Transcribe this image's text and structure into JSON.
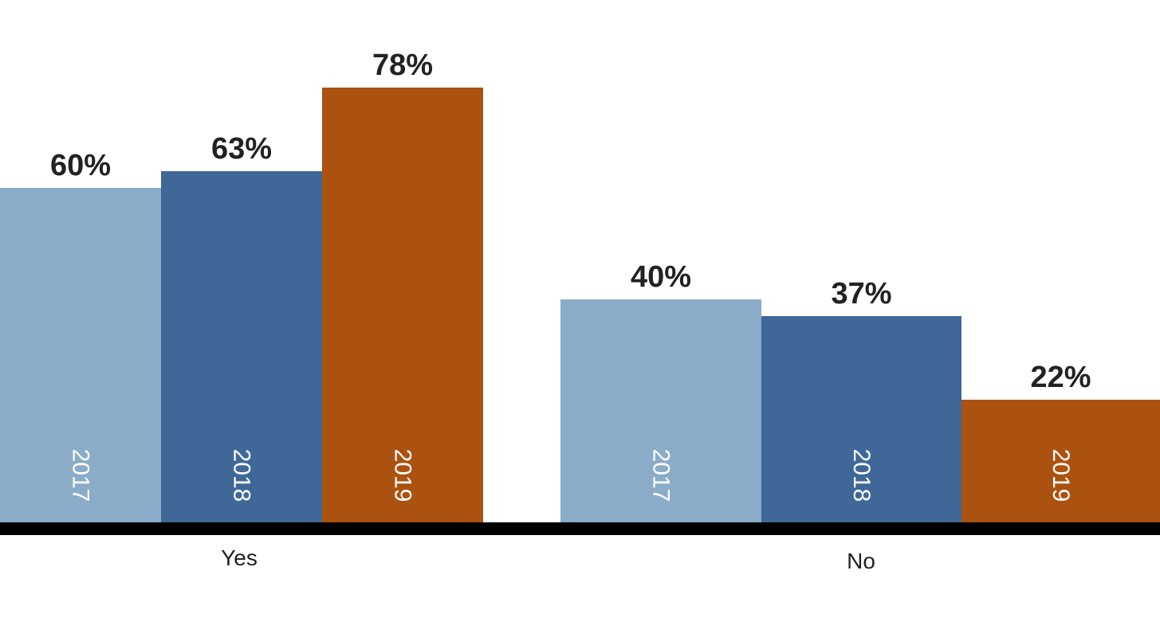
{
  "chart_data": {
    "type": "bar",
    "title": "",
    "xlabel": "",
    "ylabel": "",
    "categories": [
      "Yes",
      "No"
    ],
    "series": [
      {
        "name": "2017",
        "values": [
          60,
          40
        ],
        "labels": [
          "60%",
          "40%"
        ],
        "color": "#8aacc8"
      },
      {
        "name": "2018",
        "values": [
          63,
          37
        ],
        "labels": [
          "63%",
          "37%"
        ],
        "color": "#3f6899"
      },
      {
        "name": "2019",
        "values": [
          78,
          22
        ],
        "labels": [
          "78%",
          "22%"
        ],
        "color": "#ab5210"
      }
    ],
    "ylim": [
      0,
      100
    ],
    "grid": false,
    "legend": "none",
    "series_label_placement": "inside-bar-rotated",
    "baseline_color": "#000000"
  }
}
